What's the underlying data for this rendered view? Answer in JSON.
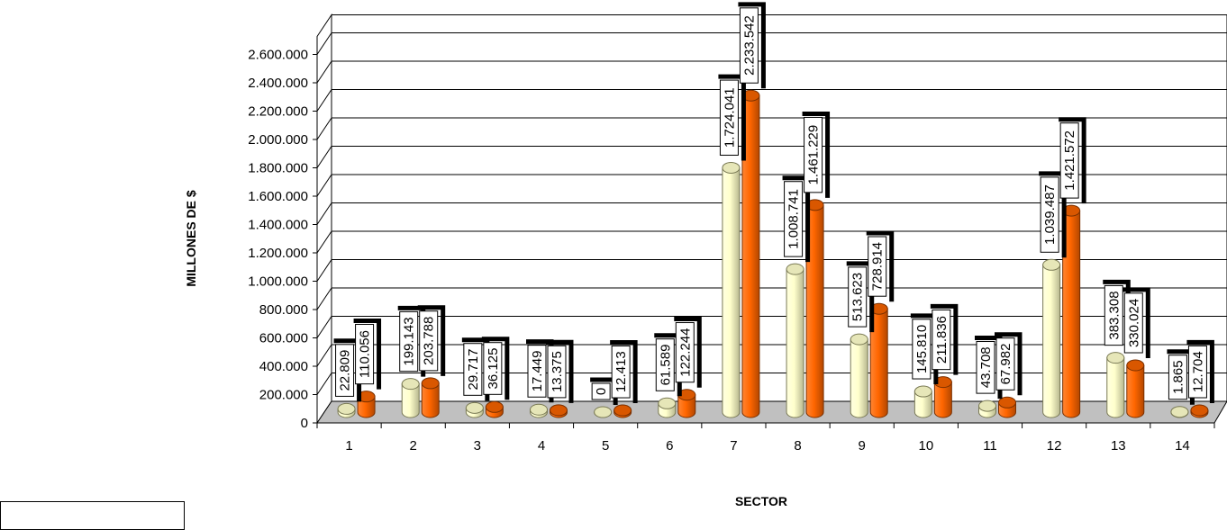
{
  "chart_data": {
    "type": "bar",
    "style": "3d-cylinder",
    "xlabel": "SECTOR",
    "ylabel": "MILLONES DE $",
    "ylim": [
      0,
      2600000
    ],
    "yticks": [
      "0",
      "200.000",
      "400.000",
      "600.000",
      "800.000",
      "1.000.000",
      "1.200.000",
      "1.400.000",
      "1.600.000",
      "1.800.000",
      "2.000.000",
      "2.200.000",
      "2.400.000",
      "2.600.000"
    ],
    "categories": [
      "1",
      "2",
      "3",
      "4",
      "5",
      "6",
      "7",
      "8",
      "9",
      "10",
      "11",
      "12",
      "13",
      "14"
    ],
    "series": [
      {
        "color": "#ffffcc",
        "values": [
          22809,
          199143,
          29717,
          17449,
          0,
          61589,
          1724041,
          1008741,
          513623,
          145810,
          43708,
          1039487,
          383308,
          1865
        ],
        "labels": [
          "22.809",
          "199.143",
          "29.717",
          "17.449",
          "0",
          "61.589",
          "1.724.041",
          "1.008.741",
          "513.623",
          "145.810",
          "43.708",
          "1.039.487",
          "383.308",
          "1.865"
        ]
      },
      {
        "color": "#ff6600",
        "values": [
          110056,
          203788,
          36125,
          13375,
          12413,
          122244,
          2233542,
          1461229,
          728914,
          211836,
          67982,
          1421572,
          330024,
          12704
        ],
        "labels": [
          "110.056",
          "203.788",
          "36.125",
          "13.375",
          "12.413",
          "122.244",
          "2.233.542",
          "1.461.229",
          "728.914",
          "211.836",
          "67.982",
          "1.421.572",
          "330.024",
          "12.704"
        ]
      }
    ],
    "grid": true,
    "legend_position": "bottom-left"
  }
}
